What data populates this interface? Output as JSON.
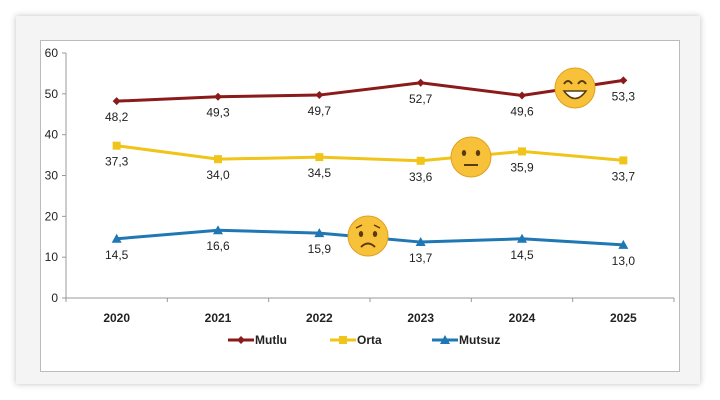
{
  "chart_data": {
    "type": "line",
    "categories": [
      "2020",
      "2021",
      "2022",
      "2023",
      "2024",
      "2025"
    ],
    "ylim": [
      0,
      60
    ],
    "yticks": [
      0,
      10,
      20,
      30,
      40,
      50,
      60
    ],
    "ytick_labels": [
      "0",
      "10",
      "20",
      "30",
      "40",
      "50",
      "60"
    ],
    "grid": false,
    "legend_placement": "bottom",
    "series": [
      {
        "name": "Mutlu",
        "values": [
          48.2,
          49.3,
          49.7,
          52.7,
          49.6,
          53.3
        ],
        "labels": [
          "48,2",
          "49,3",
          "49,7",
          "52,7",
          "49,6",
          "53,3"
        ],
        "color": "#8b1a1a",
        "marker": "diamond",
        "emoji": "laughing-face-icon"
      },
      {
        "name": "Orta",
        "values": [
          37.3,
          34.0,
          34.5,
          33.6,
          35.9,
          33.7
        ],
        "labels": [
          "37,3",
          "34,0",
          "34,5",
          "33,6",
          "35,9",
          "33,7"
        ],
        "color": "#f0c419",
        "marker": "square",
        "emoji": "neutral-face-icon"
      },
      {
        "name": "Mutsuz",
        "values": [
          14.5,
          16.6,
          15.9,
          13.7,
          14.5,
          13.0
        ],
        "labels": [
          "14,5",
          "16,6",
          "15,9",
          "13,7",
          "14,5",
          "13,0"
        ],
        "color": "#1f77b4",
        "marker": "triangle",
        "emoji": "sad-face-icon"
      }
    ]
  }
}
